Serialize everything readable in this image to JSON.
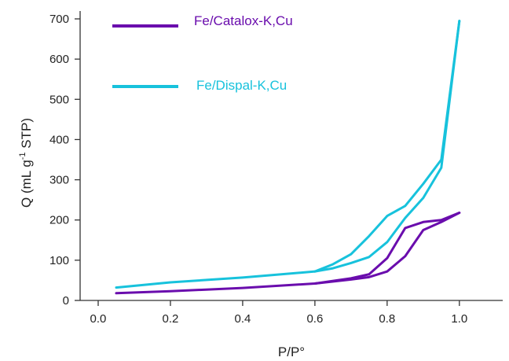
{
  "chart_data": {
    "type": "line",
    "title": "",
    "xlabel": "P/P°",
    "ylabel": {
      "main": "Q (mL g",
      "sup": "-1",
      "rest": " STP)"
    },
    "xlim": [
      -0.05,
      1.12
    ],
    "ylim": [
      0,
      700
    ],
    "xticks": [
      0.0,
      0.2,
      0.4,
      0.6,
      0.8,
      1.0
    ],
    "xtick_labels": [
      "0.0",
      "0.2",
      "0.4",
      "0.6",
      "0.8",
      "1.0"
    ],
    "yticks": [
      0,
      100,
      200,
      300,
      400,
      500,
      600,
      700
    ],
    "ytick_labels": [
      "0",
      "100",
      "200",
      "300",
      "400",
      "500",
      "600",
      "700"
    ],
    "grid": false,
    "legend_position": "top",
    "series": [
      {
        "name": "Fe/Catalox-K,Cu",
        "color": "#6a0dad",
        "adsorption": {
          "x": [
            0.05,
            0.2,
            0.4,
            0.6,
            0.7,
            0.75,
            0.8,
            0.85,
            0.9,
            0.95,
            1.0
          ],
          "y": [
            18,
            23,
            31,
            42,
            52,
            58,
            72,
            110,
            175,
            195,
            218
          ]
        },
        "desorption": {
          "x": [
            1.0,
            0.95,
            0.9,
            0.85,
            0.8,
            0.75,
            0.7,
            0.6
          ],
          "y": [
            218,
            200,
            195,
            180,
            105,
            65,
            55,
            42
          ]
        }
      },
      {
        "name": "Fe/Dispal-K,Cu",
        "color": "#17c2dc",
        "adsorption": {
          "x": [
            0.05,
            0.2,
            0.4,
            0.6,
            0.65,
            0.7,
            0.75,
            0.8,
            0.85,
            0.9,
            0.95,
            1.0
          ],
          "y": [
            32,
            45,
            57,
            72,
            80,
            93,
            108,
            145,
            205,
            255,
            330,
            695
          ]
        },
        "desorption": {
          "x": [
            1.0,
            0.95,
            0.9,
            0.85,
            0.8,
            0.75,
            0.7,
            0.65,
            0.6
          ],
          "y": [
            695,
            350,
            290,
            235,
            210,
            160,
            115,
            90,
            72
          ]
        }
      }
    ]
  }
}
